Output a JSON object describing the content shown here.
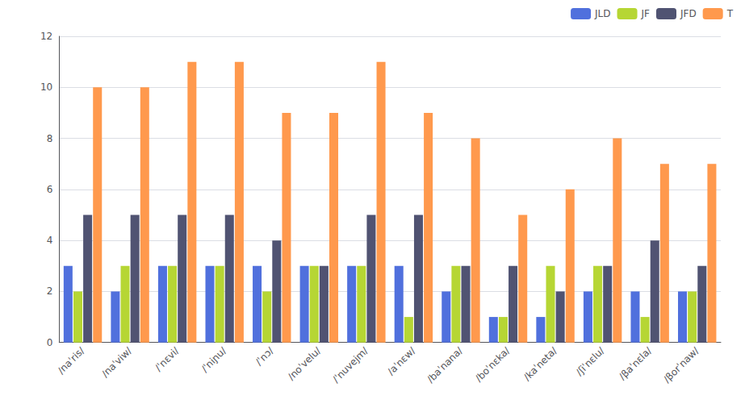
{
  "chart_data": {
    "type": "bar",
    "categories": [
      "/naˈris/",
      "/naˈviw/",
      "/ˈnɛvi/",
      "/ˈniɲu/",
      "/ˈnɔ/",
      "/noˈvelu/",
      "/ˈnuvejm/",
      "/aˈnɛw/",
      "/baˈnana/",
      "/boˈnɛka/",
      "/kaˈneta/",
      "/ʃiˈnɛlu/",
      "/βaˈnɛla/",
      "/βorˈnaw/"
    ],
    "series": [
      {
        "name": "JLD",
        "values": [
          3,
          2,
          3,
          3,
          3,
          3,
          3,
          3,
          2,
          1,
          1,
          2,
          2,
          2
        ]
      },
      {
        "name": "JF",
        "values": [
          2,
          3,
          3,
          3,
          2,
          3,
          3,
          1,
          3,
          1,
          3,
          3,
          1,
          2
        ]
      },
      {
        "name": "JFD",
        "values": [
          5,
          5,
          5,
          5,
          4,
          3,
          5,
          5,
          3,
          3,
          2,
          3,
          4,
          3
        ]
      },
      {
        "name": "T",
        "values": [
          10,
          10,
          11,
          11,
          9,
          9,
          11,
          9,
          8,
          5,
          6,
          8,
          7,
          7
        ]
      }
    ],
    "ylim": [
      0,
      12
    ],
    "yticks": [
      0,
      2,
      4,
      6,
      8,
      10,
      12
    ],
    "grid": true,
    "legend": "upper right"
  }
}
